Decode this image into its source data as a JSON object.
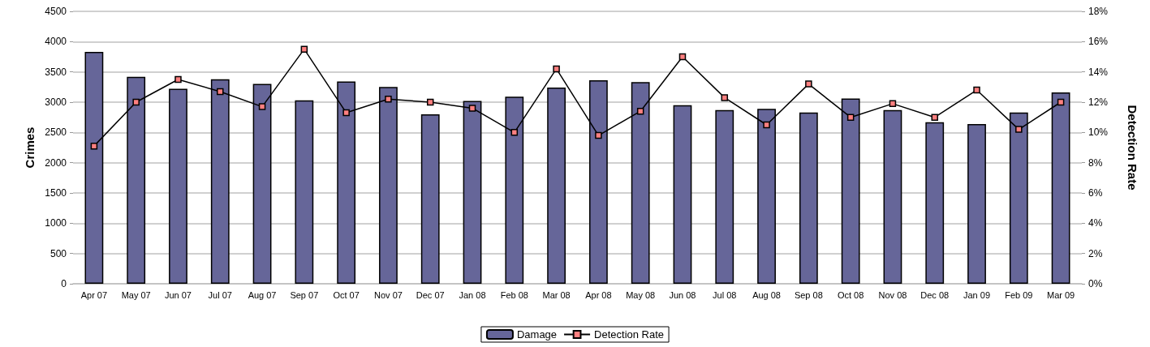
{
  "chart_data": {
    "type": "bar",
    "ylabel": "Crimes",
    "y2label": "Detection Rate",
    "categories": [
      "Apr 07",
      "May 07",
      "Jun 07",
      "Jul 07",
      "Aug 07",
      "Sep 07",
      "Oct 07",
      "Nov 07",
      "Dec 07",
      "Jan 08",
      "Feb 08",
      "Mar 08",
      "Apr 08",
      "May 08",
      "Jun 08",
      "Jul 08",
      "Aug 08",
      "Sep 08",
      "Oct 08",
      "Nov 08",
      "Dec 08",
      "Jan 09",
      "Feb 09",
      "Mar 09"
    ],
    "series": [
      {
        "name": "Damage",
        "color": "#666699",
        "values": [
          3830,
          3420,
          3220,
          3380,
          3300,
          3030,
          3340,
          3250,
          2800,
          3020,
          3090,
          3240,
          3360,
          3330,
          2950,
          2870,
          2890,
          2830,
          3060,
          2870,
          2670,
          2640,
          2830,
          3160
        ]
      },
      {
        "name": "Detection Rate",
        "type": "line",
        "axis": "y2",
        "color": "#000000",
        "marker": "square",
        "values": [
          9.1,
          12.0,
          13.5,
          12.7,
          11.7,
          15.5,
          11.3,
          12.2,
          12.0,
          11.6,
          10.0,
          14.2,
          9.8,
          11.4,
          15.0,
          12.3,
          10.5,
          13.2,
          11.0,
          11.9,
          11.0,
          12.8,
          10.2,
          12.0
        ]
      }
    ],
    "ylim": [
      0,
      4500
    ],
    "yticks": [
      0,
      500,
      1000,
      1500,
      2000,
      2500,
      3000,
      3500,
      4000,
      4500
    ],
    "y2lim": [
      0,
      18
    ],
    "y2ticks": [
      {
        "value": 0,
        "label": "0%"
      },
      {
        "value": 2,
        "label": "2%"
      },
      {
        "value": 4,
        "label": "4%"
      },
      {
        "value": 6,
        "label": "6%"
      },
      {
        "value": 8,
        "label": "8%"
      },
      {
        "value": 10,
        "label": "10%"
      },
      {
        "value": 12,
        "label": "12%"
      },
      {
        "value": 14,
        "label": "14%"
      },
      {
        "value": 16,
        "label": "16%"
      },
      {
        "value": 18,
        "label": "18%"
      }
    ],
    "grid": "y",
    "legend": "bottom"
  }
}
